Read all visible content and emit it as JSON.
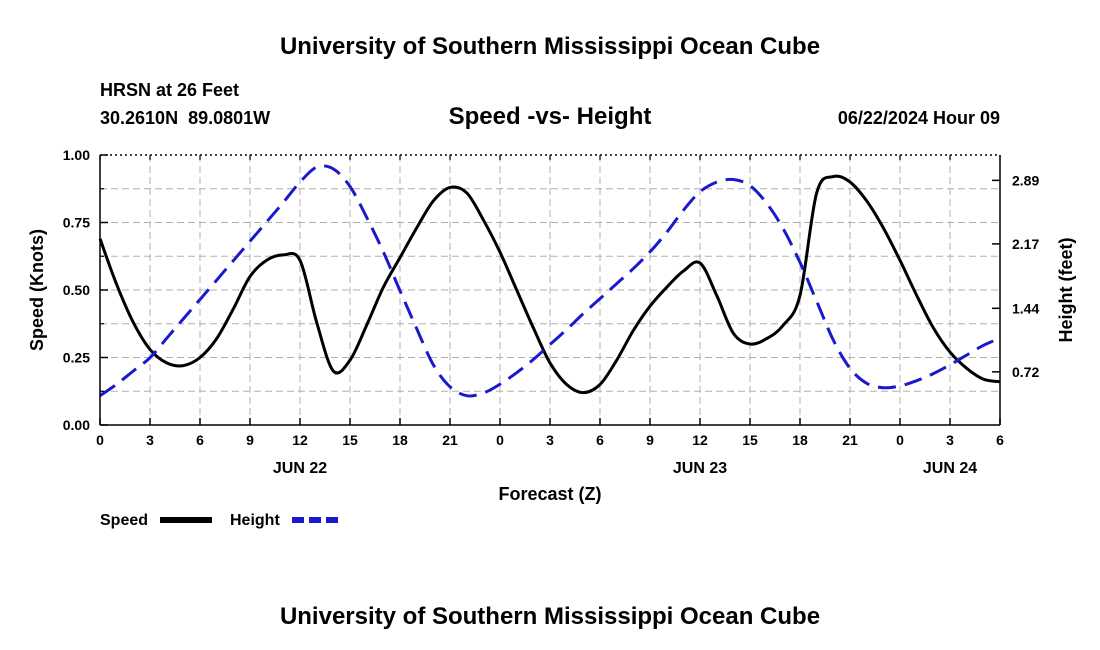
{
  "header": {
    "title": "University of Southern Mississippi Ocean Cube",
    "station": "HRSN at 26 Feet",
    "coords": "30.2610N  89.0801W",
    "subtitle": "Speed -vs- Height",
    "datetime": "06/22/2024 Hour 09"
  },
  "footer": {
    "title": "University of Southern Mississippi Ocean Cube"
  },
  "legend": {
    "speed_label": "Speed",
    "height_label": "Height"
  },
  "colors": {
    "speed": "#000000",
    "height": "#1a1acc",
    "grid": "#b0b0b0"
  },
  "chart_data": {
    "type": "line",
    "title": "Speed -vs- Height",
    "xlabel": "Forecast (Z)",
    "ylabel": "Speed (Knots)",
    "y2label": "Height (feet)",
    "xlim": [
      0,
      54
    ],
    "ylim": [
      0,
      1
    ],
    "y2lim": [
      0.1175,
      3.1775
    ],
    "x_tick_values": [
      0,
      3,
      6,
      9,
      12,
      15,
      18,
      21,
      24,
      27,
      30,
      33,
      36,
      39,
      42,
      45,
      48,
      51,
      54
    ],
    "x_tick_labels": [
      "0",
      "3",
      "6",
      "9",
      "12",
      "15",
      "18",
      "21",
      "0",
      "3",
      "6",
      "9",
      "12",
      "15",
      "18",
      "21",
      "0",
      "3",
      "6"
    ],
    "y_ticks": [
      0,
      0.25,
      0.5,
      0.75,
      1.0
    ],
    "y_tick_labels": [
      "0.00",
      "0.25",
      "0.50",
      "0.75",
      "1.00"
    ],
    "y2_ticks": [
      0.72,
      1.44,
      2.17,
      2.89
    ],
    "y2_tick_labels": [
      "0.72",
      "1.44",
      "2.17",
      "2.89"
    ],
    "date_labels": [
      {
        "x": 12,
        "label": "JUN 22"
      },
      {
        "x": 36,
        "label": "JUN 23"
      },
      {
        "x": 51,
        "label": "JUN 24"
      }
    ],
    "grid": true,
    "series": [
      {
        "name": "Speed",
        "axis": "left",
        "style": "solid",
        "x": [
          0,
          1,
          2,
          3,
          4,
          5,
          6,
          7,
          8,
          9,
          10,
          11,
          12,
          13,
          14,
          15,
          16,
          17,
          18,
          19,
          20,
          21,
          22,
          23,
          24,
          25,
          26,
          27,
          28,
          29,
          30,
          31,
          32,
          33,
          34,
          35,
          36,
          37,
          38,
          39,
          40,
          41,
          42,
          43,
          44,
          45,
          46,
          47,
          48,
          49,
          50,
          51,
          52,
          53,
          54
        ],
        "values": [
          0.69,
          0.52,
          0.38,
          0.28,
          0.23,
          0.22,
          0.25,
          0.32,
          0.43,
          0.55,
          0.61,
          0.63,
          0.61,
          0.38,
          0.2,
          0.24,
          0.37,
          0.51,
          0.62,
          0.73,
          0.83,
          0.88,
          0.86,
          0.76,
          0.64,
          0.5,
          0.36,
          0.23,
          0.15,
          0.12,
          0.15,
          0.24,
          0.35,
          0.44,
          0.51,
          0.57,
          0.6,
          0.48,
          0.34,
          0.3,
          0.32,
          0.37,
          0.48,
          0.86,
          0.92,
          0.9,
          0.83,
          0.73,
          0.61,
          0.48,
          0.36,
          0.27,
          0.21,
          0.17,
          0.16
        ]
      },
      {
        "name": "Height",
        "axis": "right",
        "style": "dashed",
        "x": [
          0,
          1,
          2,
          3,
          4,
          5,
          6,
          7,
          8,
          9,
          10,
          11,
          12,
          13,
          14,
          15,
          16,
          17,
          18,
          19,
          20,
          21,
          22,
          23,
          24,
          25,
          26,
          27,
          28,
          29,
          30,
          31,
          32,
          33,
          34,
          35,
          36,
          37,
          38,
          39,
          40,
          41,
          42,
          43,
          44,
          45,
          46,
          47,
          48,
          49,
          50,
          51,
          52,
          53,
          54
        ],
        "values": [
          0.45,
          0.58,
          0.73,
          0.88,
          1.1,
          1.32,
          1.54,
          1.76,
          1.98,
          2.2,
          2.42,
          2.64,
          2.87,
          3.04,
          3.02,
          2.82,
          2.47,
          2.08,
          1.64,
          1.21,
          0.8,
          0.55,
          0.45,
          0.48,
          0.58,
          0.71,
          0.86,
          1.03,
          1.2,
          1.38,
          1.55,
          1.72,
          1.89,
          2.08,
          2.3,
          2.55,
          2.76,
          2.87,
          2.9,
          2.83,
          2.63,
          2.34,
          1.96,
          1.52,
          1.08,
          0.76,
          0.59,
          0.54,
          0.56,
          0.62,
          0.7,
          0.8,
          0.91,
          1.02,
          1.1
        ]
      }
    ]
  }
}
